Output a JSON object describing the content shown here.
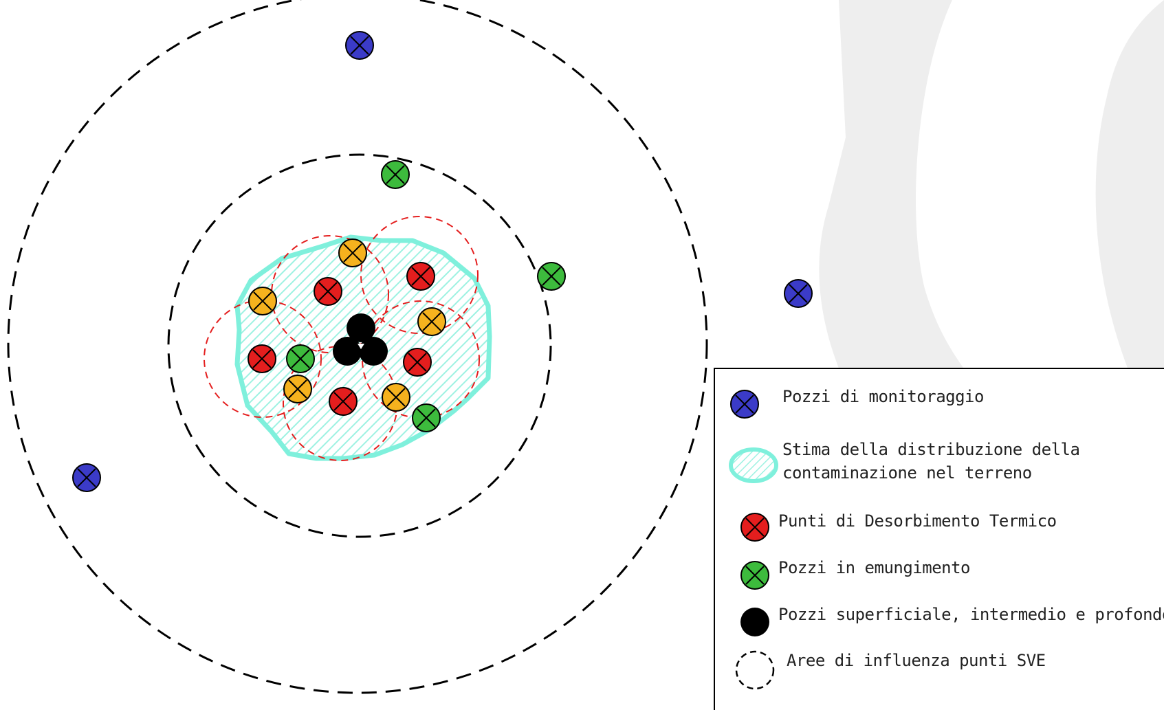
{
  "diagram": {
    "colors": {
      "monitoring": "#3b3bc8",
      "extraction": "#3dbb3d",
      "thermal": "#e41e1e",
      "orange": "#f5b21e",
      "sve": "#000000",
      "contamination": "#7ff0dc",
      "influence_red": "#e41e1e",
      "watermark": "#eeeeee"
    },
    "icons": {
      "well_symbol": "circle-with-x-icon",
      "sve_point": "filled-circle-icon",
      "influence_area": "dashed-circle-icon",
      "contamination_area": "hatched-blob-icon"
    }
  },
  "legend": {
    "items": [
      {
        "icon": "blue-well-icon",
        "label": "Pozzi di monitoraggio"
      },
      {
        "icon": "contamination-area-icon",
        "label_line1": "Stima della distribuzione della",
        "label_line2": "contaminazione nel terreno"
      },
      {
        "icon": "red-well-icon",
        "label": "Punti di Desorbimento Termico"
      },
      {
        "icon": "green-well-icon",
        "label": "Pozzi in emungimento"
      },
      {
        "icon": "black-dot-icon",
        "label": "Pozzi superficiale, intermedio e profondo di SVE"
      },
      {
        "icon": "dashed-circle-icon",
        "label": "Aree di influenza punti SVE"
      }
    ]
  }
}
